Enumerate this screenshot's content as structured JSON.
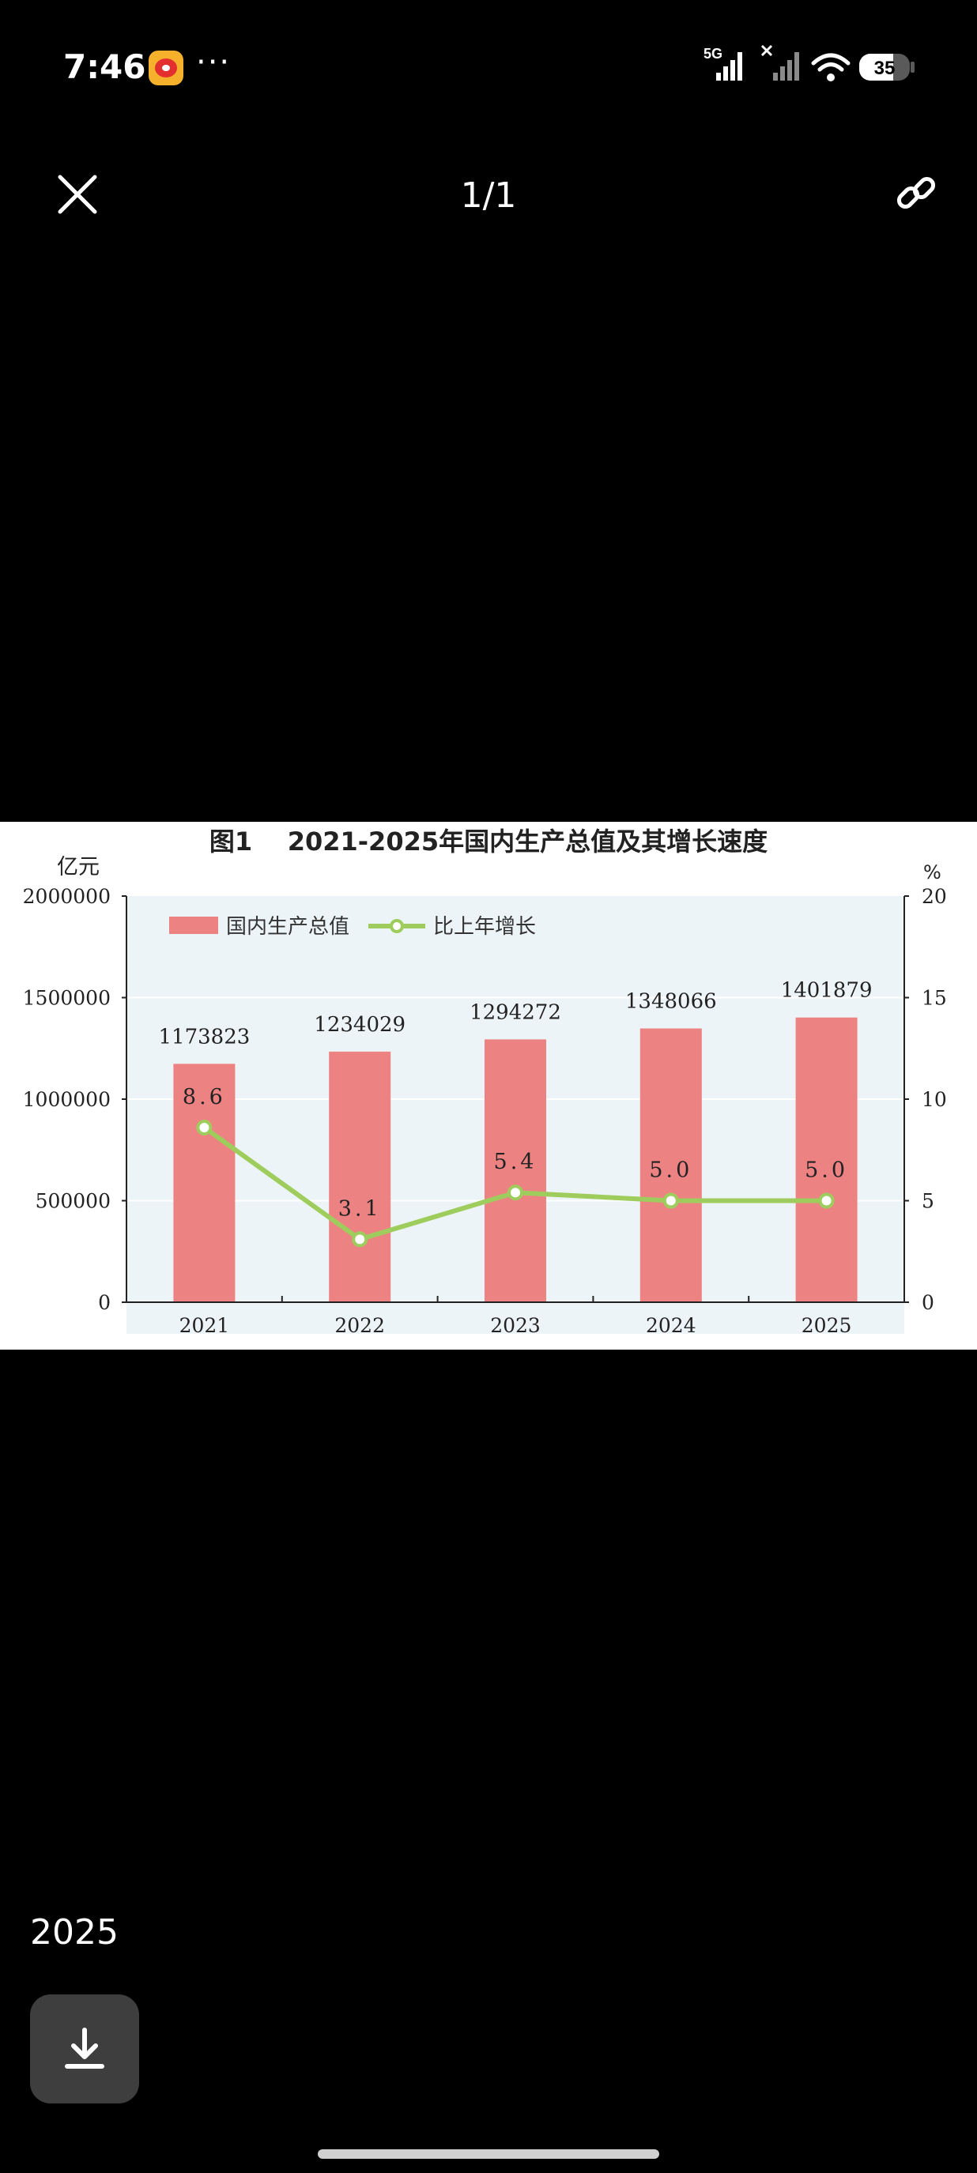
{
  "status_bar": {
    "time": "7:46",
    "network_label": "5G",
    "battery_level": "35",
    "icons": [
      "weibo-app-icon",
      "more-dots-icon",
      "signal-5g-icon",
      "signal-icon",
      "wifi-icon",
      "battery-icon"
    ]
  },
  "viewer": {
    "page_counter": "1/1",
    "icons": [
      "close-icon",
      "link-icon",
      "download-icon"
    ]
  },
  "caption": {
    "year": "2025"
  },
  "chart": {
    "title": "图1    2021-2025年国内生产总值及其增长速度",
    "left_unit": "亿元",
    "right_unit": "%",
    "left_ticks": [
      "2000000",
      "1500000",
      "1000000",
      "500000",
      "0"
    ],
    "right_ticks": [
      "20",
      "15",
      "10",
      "5",
      "0"
    ],
    "legend_bar": "国内生产总值",
    "legend_line": "比上年增长",
    "colors": {
      "bar": "#ec8282",
      "line": "#9fcd5d",
      "plot_bg": "#edf4f8"
    }
  },
  "chart_data": {
    "type": "bar",
    "categories": [
      "2021",
      "2022",
      "2023",
      "2024",
      "2025"
    ],
    "series": [
      {
        "name": "国内生产总值",
        "type": "bar",
        "axis": "left",
        "values": [
          1173823,
          1234029,
          1294272,
          1348066,
          1401879
        ],
        "labels": [
          "1173823",
          "1234029",
          "1294272",
          "1348066",
          "1401879"
        ]
      },
      {
        "name": "比上年增长",
        "type": "line",
        "axis": "right",
        "values": [
          8.6,
          3.1,
          5.4,
          5.0,
          5.0
        ],
        "labels": [
          "8.6",
          "3.1",
          "5.4",
          "5.0",
          "5.0"
        ]
      }
    ],
    "ylim": [
      0,
      2000000
    ],
    "y2lim": [
      0,
      20
    ],
    "title": "图1    2021-2025年国内生产总值及其增长速度"
  }
}
